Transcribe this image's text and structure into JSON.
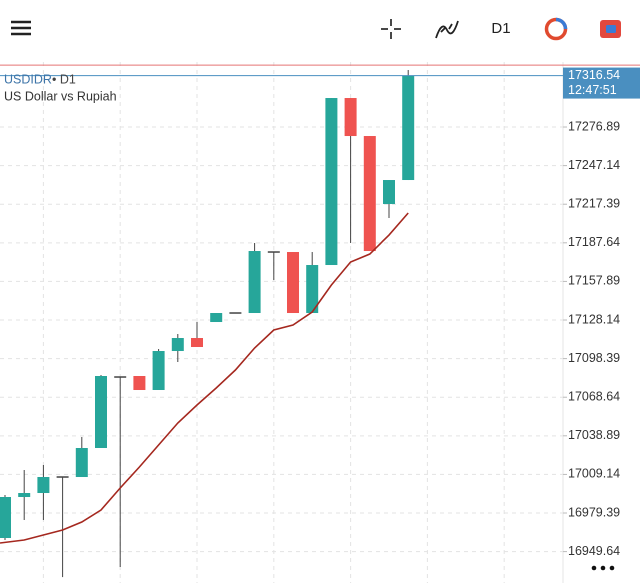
{
  "toolbar": {
    "timeframe": "D1"
  },
  "chart_data": {
    "type": "candlestick",
    "symbol": "USDIDR",
    "timeframe_label": "• D1",
    "subtitle": "US Dollar vs Rupiah",
    "open": [
      16960.13,
      16991.73,
      16994.81,
      17007.14,
      17007.14,
      17029.5,
      17084.21,
      17084.99,
      17074.2,
      17104.25,
      17114.27,
      17126.6,
      17133.54,
      17133.54,
      17180.55,
      17180.55,
      17133.54,
      17170.53,
      17299.24,
      17269.95,
      17217.55,
      17236.04
    ],
    "high": [
      16993.27,
      17012.54,
      17016.39,
      17007.14,
      17037.97,
      17085.76,
      17084.21,
      17084.99,
      17105.79,
      17117.36,
      17126.6,
      17133.54,
      17133.54,
      17187.49,
      17180.55,
      17180.55,
      17180.55,
      17299.24,
      17299.24,
      17269.95,
      17236.04,
      17320.82
    ],
    "low": [
      16958.59,
      16974.01,
      16974.01,
      16930.0,
      17007.14,
      17029.5,
      16937.78,
      17074.2,
      17074.2,
      17095.78,
      17107.34,
      17126.6,
      17133.54,
      17133.54,
      17158.97,
      17133.54,
      17133.54,
      17170.53,
      17187.49,
      17181.32,
      17206.76,
      17236.04
    ],
    "close": [
      16991.73,
      16994.81,
      17007.14,
      17007.14,
      17029.5,
      17084.99,
      17084.21,
      17074.2,
      17104.25,
      17114.27,
      17107.34,
      17133.54,
      17133.54,
      17181.32,
      17180.55,
      17133.54,
      17170.53,
      17299.24,
      17269.95,
      17181.32,
      17236.04,
      17316.54
    ],
    "up_color": "#26a69a",
    "down_color": "#ef5350",
    "ma": {
      "color": "#a5281f",
      "values": [
        16956.28,
        16958.59,
        16962.44,
        16966.3,
        16972.46,
        16981.71,
        16998.67,
        17014.85,
        17031.81,
        17048.76,
        17062.64,
        17075.74,
        17089.61,
        17106.57,
        17120.44,
        17124.29,
        17134.31,
        17155.12,
        17172.85,
        17179.01,
        17193.65,
        17210.61
      ]
    },
    "ylim": [
      16925.45,
      17327.0
    ],
    "yticks": [
      17276.89,
      17247.14,
      17217.39,
      17187.64,
      17157.89,
      17128.14,
      17098.39,
      17068.64,
      17038.89,
      17009.14,
      16979.39,
      16949.64
    ],
    "grid": true,
    "last_price": {
      "value": 17316.54,
      "time": "12:47:51",
      "color": "#4a8fc0"
    },
    "ask_line": {
      "value": 17324.6,
      "color": "#e57373"
    }
  }
}
